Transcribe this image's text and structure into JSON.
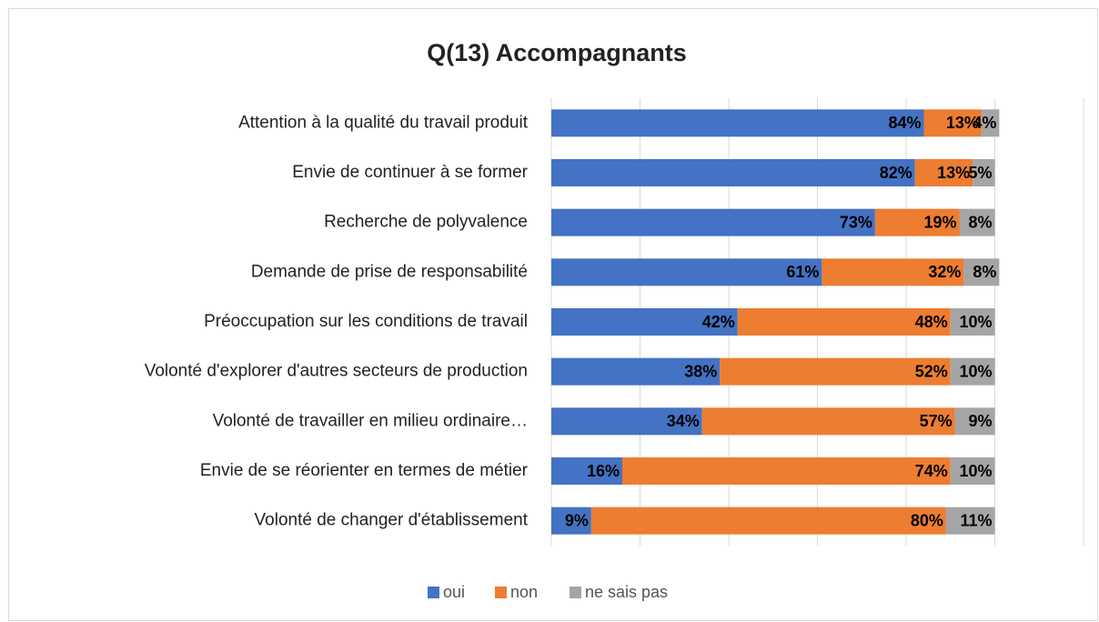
{
  "chart_data": {
    "type": "stacked_bar_horizontal",
    "title": "Q(13) Accompagnants",
    "categories": [
      "Attention à la qualité du travail produit",
      "Envie de continuer à se former",
      "Recherche de polyvalence",
      "Demande de prise de responsabilité",
      "Préoccupation sur les conditions de travail",
      "Volonté d'explorer d'autres secteurs de production",
      "Volonté de travailler en milieu ordinaire…",
      "Envie de se réorienter en termes de métier",
      "Volonté de changer d'établissement"
    ],
    "series": [
      {
        "name": "oui",
        "color": "#4472c4",
        "values": [
          84,
          82,
          73,
          61,
          42,
          38,
          34,
          16,
          9
        ],
        "value_labels": [
          "84%",
          "82%",
          "73%",
          "61%",
          "42%",
          "38%",
          "34%",
          "16%",
          "9%"
        ]
      },
      {
        "name": "non",
        "color": "#ed7d31",
        "values": [
          13,
          13,
          19,
          32,
          48,
          52,
          57,
          74,
          80
        ],
        "value_labels": [
          "13%",
          "13%",
          "19%",
          "32%",
          "48%",
          "52%",
          "57%",
          "74%",
          "80%"
        ]
      },
      {
        "name": "ne sais pas",
        "color": "#a5a5a5",
        "values": [
          4,
          5,
          8,
          8,
          10,
          10,
          9,
          10,
          11
        ],
        "value_labels": [
          "4%",
          "5%",
          "8%",
          "8%",
          "10%",
          "10%",
          "9%",
          "10%",
          "11%"
        ]
      }
    ],
    "xlim": [
      0,
      120
    ],
    "xticks": [
      0,
      20,
      40,
      60,
      80,
      100,
      120
    ],
    "tick_labels": false,
    "grid": true,
    "legend": "bottom"
  }
}
